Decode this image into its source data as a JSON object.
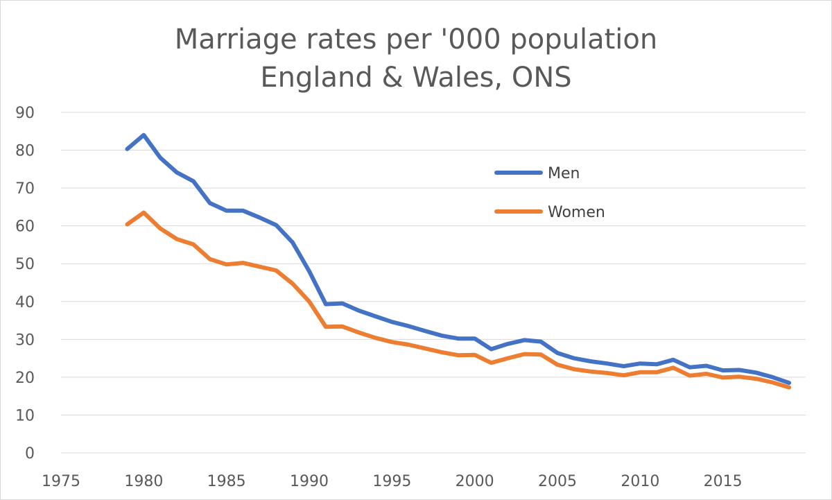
{
  "chart_data": {
    "type": "line",
    "title": "Marriage rates per '000 population",
    "subtitle": "England & Wales, ONS",
    "xlabel": "",
    "ylabel": "",
    "xlim": [
      1975,
      2020
    ],
    "ylim": [
      0,
      90
    ],
    "x_ticks": [
      1975,
      1980,
      1985,
      1990,
      1995,
      2000,
      2005,
      2010,
      2015
    ],
    "y_ticks": [
      0,
      10,
      20,
      30,
      40,
      50,
      60,
      70,
      80,
      90
    ],
    "grid": "horizontal",
    "legend_placement": "right",
    "x": [
      1979,
      1980,
      1981,
      1982,
      1983,
      1984,
      1985,
      1986,
      1987,
      1988,
      1989,
      1990,
      1991,
      1992,
      1993,
      1994,
      1995,
      1996,
      1997,
      1998,
      1999,
      2000,
      2001,
      2002,
      2003,
      2004,
      2005,
      2006,
      2007,
      2008,
      2009,
      2010,
      2011,
      2012,
      2013,
      2014,
      2015,
      2016,
      2017,
      2018,
      2019
    ],
    "series": [
      {
        "name": "Men",
        "color": "#4472c4",
        "values": [
          80.3,
          84.0,
          78.0,
          74.1,
          71.8,
          66.0,
          64.0,
          64.0,
          62.2,
          60.2,
          55.6,
          48.0,
          39.3,
          39.5,
          37.6,
          36.1,
          34.6,
          33.5,
          32.2,
          31.0,
          30.2,
          30.2,
          27.4,
          28.8,
          29.8,
          29.4,
          26.4,
          25.0,
          24.2,
          23.6,
          22.9,
          23.6,
          23.4,
          24.6,
          22.6,
          23.0,
          21.8,
          21.9,
          21.2,
          20.0,
          18.5
        ]
      },
      {
        "name": "Women",
        "color": "#ed7d31",
        "values": [
          60.4,
          63.5,
          59.3,
          56.5,
          55.1,
          51.2,
          49.8,
          50.2,
          49.2,
          48.2,
          44.7,
          40.0,
          33.3,
          33.4,
          31.8,
          30.4,
          29.3,
          28.6,
          27.6,
          26.6,
          25.8,
          25.9,
          23.8,
          25.0,
          26.1,
          26.0,
          23.3,
          22.1,
          21.5,
          21.1,
          20.5,
          21.3,
          21.3,
          22.5,
          20.4,
          20.9,
          19.9,
          20.1,
          19.6,
          18.6,
          17.3
        ]
      }
    ]
  }
}
